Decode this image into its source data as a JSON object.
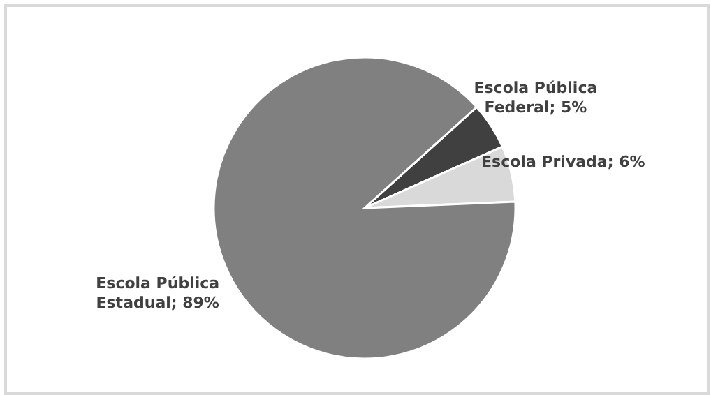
{
  "chart_data": {
    "type": "pie",
    "categories": [
      "Escola Pública Federal",
      "Escola Privada",
      "Escola Pública Estadual"
    ],
    "values": [
      5,
      6,
      89
    ],
    "value_labels": [
      "5%",
      "6%",
      "89%"
    ],
    "colors": [
      "#404040",
      "#d9d9d9",
      "#808080"
    ],
    "legend": false
  }
}
